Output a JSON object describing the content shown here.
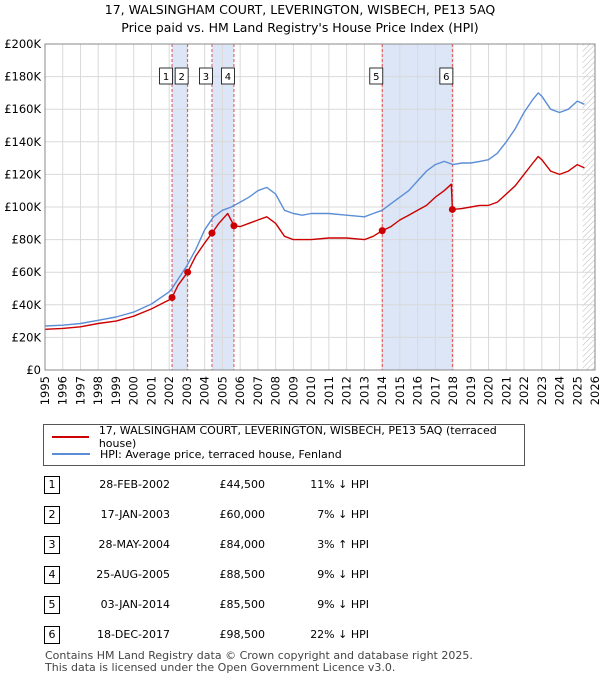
{
  "title_line1": "17, WALSINGHAM COURT, LEVERINGTON, WISBECH, PE13 5AQ",
  "title_line2": "Price paid vs. HM Land Registry's House Price Index (HPI)",
  "legend": {
    "property": "17, WALSINGHAM COURT, LEVERINGTON, WISBECH, PE13 5AQ (terraced house)",
    "hpi": "HPI: Average price, terraced house, Fenland"
  },
  "colors": {
    "property": "#cc0000",
    "hpi": "#5b8ed6",
    "band": "#dde6f7",
    "vline": "#e05050"
  },
  "transactions": [
    {
      "num": "1",
      "date": "28-FEB-2002",
      "price": "£44,500",
      "hpi": "11% ↓ HPI"
    },
    {
      "num": "2",
      "date": "17-JAN-2003",
      "price": "£60,000",
      "hpi": "7% ↓ HPI"
    },
    {
      "num": "3",
      "date": "28-MAY-2004",
      "price": "£84,000",
      "hpi": "3% ↑ HPI"
    },
    {
      "num": "4",
      "date": "25-AUG-2005",
      "price": "£88,500",
      "hpi": "9% ↓ HPI"
    },
    {
      "num": "5",
      "date": "03-JAN-2014",
      "price": "£85,500",
      "hpi": "9% ↓ HPI"
    },
    {
      "num": "6",
      "date": "18-DEC-2017",
      "price": "£98,500",
      "hpi": "22% ↓ HPI"
    }
  ],
  "footer_line1": "Contains HM Land Registry data © Crown copyright and database right 2025.",
  "footer_line2": "This data is licensed under the Open Government Licence v3.0.",
  "chart_data": {
    "type": "line",
    "title": "17, WALSINGHAM COURT, LEVERINGTON, WISBECH, PE13 5AQ",
    "subtitle": "Price paid vs. HM Land Registry's House Price Index (HPI)",
    "xlabel": "",
    "ylabel": "",
    "xlim": [
      1995,
      2026
    ],
    "ylim": [
      0,
      200000
    ],
    "y_ticks": [
      0,
      20000,
      40000,
      60000,
      80000,
      100000,
      120000,
      140000,
      160000,
      180000,
      200000
    ],
    "y_tick_labels": [
      "£0",
      "£20K",
      "£40K",
      "£60K",
      "£80K",
      "£100K",
      "£120K",
      "£140K",
      "£160K",
      "£180K",
      "£200K"
    ],
    "x_ticks": [
      1995,
      1996,
      1997,
      1998,
      1999,
      2000,
      2001,
      2002,
      2003,
      2004,
      2005,
      2006,
      2007,
      2008,
      2009,
      2010,
      2011,
      2012,
      2013,
      2014,
      2015,
      2016,
      2017,
      2018,
      2019,
      2020,
      2021,
      2022,
      2023,
      2024,
      2025,
      2026
    ],
    "x_tick_labels": [
      "1995",
      "1996",
      "1997",
      "1998",
      "1999",
      "2000",
      "2001",
      "2002",
      "2003",
      "2004",
      "2005",
      "2006",
      "2007",
      "2008",
      "2009",
      "2010",
      "2011",
      "2012",
      "2013",
      "2014",
      "2015",
      "2016",
      "2017",
      "2018",
      "2019",
      "2020",
      "2021",
      "2022",
      "2023",
      "2024",
      "2025",
      "2026"
    ],
    "grid": true,
    "shaded_bands": [
      [
        2002.16,
        2003.04
      ],
      [
        2004.41,
        2005.65
      ],
      [
        2014.01,
        2017.96
      ]
    ],
    "sale_markers": [
      {
        "label": "1",
        "x": 2002.16,
        "y": 44500
      },
      {
        "label": "2",
        "x": 2003.04,
        "y": 60000
      },
      {
        "label": "3",
        "x": 2004.41,
        "y": 84000
      },
      {
        "label": "4",
        "x": 2005.65,
        "y": 88500
      },
      {
        "label": "5",
        "x": 2014.01,
        "y": 85500
      },
      {
        "label": "6",
        "x": 2017.96,
        "y": 98500
      }
    ],
    "future_hatch_start": 2025.3,
    "series": [
      {
        "name": "HPI: Average price, terraced house, Fenland",
        "x": [
          1995.0,
          1996.0,
          1997.0,
          1998.0,
          1999.0,
          2000.0,
          2001.0,
          2002.0,
          2002.16,
          2003.0,
          2003.5,
          2004.0,
          2004.5,
          2005.0,
          2005.5,
          2006.0,
          2006.5,
          2007.0,
          2007.5,
          2008.0,
          2008.5,
          2009.0,
          2009.5,
          2010.0,
          2011.0,
          2012.0,
          2013.0,
          2013.5,
          2014.0,
          2014.5,
          2015.0,
          2015.5,
          2016.0,
          2016.5,
          2017.0,
          2017.5,
          2018.0,
          2018.5,
          2019.0,
          2019.5,
          2020.0,
          2020.5,
          2021.0,
          2021.5,
          2022.0,
          2022.5,
          2022.8,
          2023.0,
          2023.5,
          2024.0,
          2024.5,
          2025.0,
          2025.4
        ],
        "values": [
          27000,
          27500,
          28500,
          30500,
          32500,
          35500,
          40500,
          48000,
          50000,
          64000,
          74000,
          86000,
          94000,
          98000,
          100000,
          103000,
          106000,
          110000,
          112000,
          108000,
          98000,
          96000,
          95000,
          96000,
          96000,
          95000,
          94000,
          96000,
          98000,
          102000,
          106000,
          110000,
          116000,
          122000,
          126000,
          128000,
          126000,
          127000,
          127000,
          128000,
          129000,
          133000,
          140000,
          148000,
          158000,
          166000,
          170000,
          168000,
          160000,
          158000,
          160000,
          165000,
          163000
        ]
      },
      {
        "name": "17, WALSINGHAM COURT, LEVERINGTON, WISBECH, PE13 5AQ (terraced house)",
        "x": [
          1995.0,
          1996.0,
          1997.0,
          1998.0,
          1999.0,
          2000.0,
          2001.0,
          2002.0,
          2002.16,
          2002.5,
          2003.04,
          2003.5,
          2004.0,
          2004.41,
          2004.8,
          2005.3,
          2005.65,
          2006.0,
          2006.5,
          2007.0,
          2007.5,
          2008.0,
          2008.5,
          2009.0,
          2009.5,
          2010.0,
          2011.0,
          2012.0,
          2013.0,
          2013.5,
          2014.01,
          2014.5,
          2015.0,
          2015.5,
          2016.0,
          2016.5,
          2017.0,
          2017.5,
          2017.9,
          2017.96,
          2018.5,
          2019.0,
          2019.5,
          2020.0,
          2020.5,
          2021.0,
          2021.5,
          2022.0,
          2022.5,
          2022.8,
          2023.0,
          2023.5,
          2024.0,
          2024.5,
          2025.0,
          2025.4
        ],
        "values": [
          25000,
          25500,
          26500,
          28500,
          30000,
          33000,
          37500,
          43000,
          44500,
          52000,
          60000,
          70000,
          78000,
          84000,
          90000,
          96000,
          88500,
          88000,
          90000,
          92000,
          94000,
          90000,
          82000,
          80000,
          80000,
          80000,
          81000,
          81000,
          80000,
          82000,
          85500,
          88000,
          92000,
          95000,
          98000,
          101000,
          106000,
          110000,
          114000,
          98500,
          99000,
          100000,
          101000,
          101000,
          103000,
          108000,
          113000,
          120000,
          127000,
          131000,
          129000,
          122000,
          120000,
          122000,
          126000,
          124000
        ]
      }
    ]
  }
}
